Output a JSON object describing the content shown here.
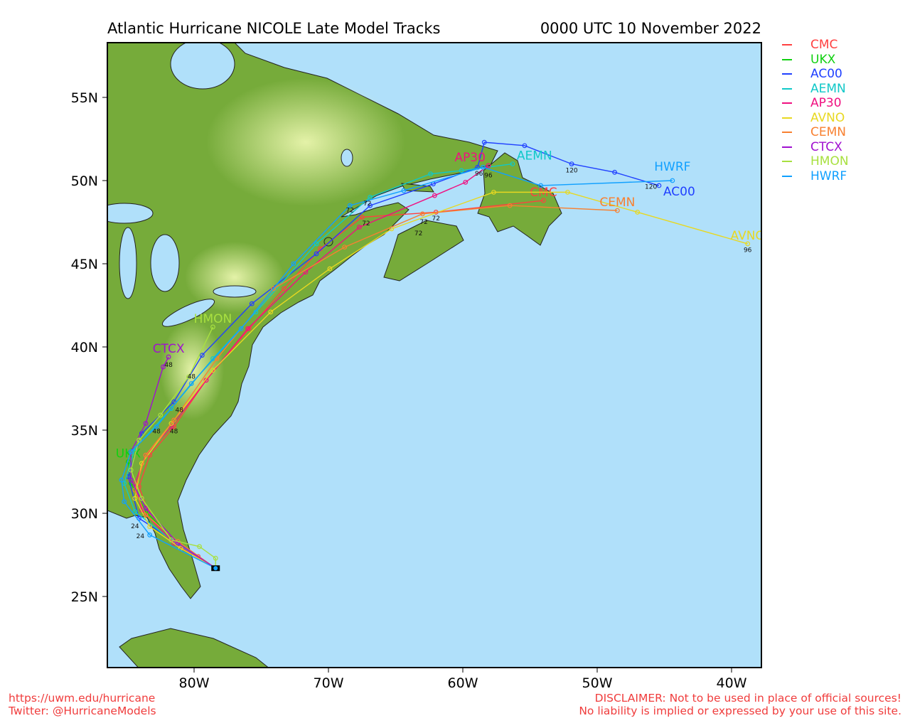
{
  "header": {
    "title": "Atlantic Hurricane NICOLE Late Model Tracks",
    "datetime": "0000 UTC 10 November 2022"
  },
  "colors": {
    "ocean": "#b0e0fa",
    "land": "#76ab3a",
    "land_high": "#d8ec9a",
    "footer": "#f03c3c"
  },
  "chart_data": {
    "type": "map-tracks",
    "title": "Atlantic Hurricane NICOLE Late Model Tracks",
    "lat_ticks": [
      {
        "value": 55,
        "label": "55N"
      },
      {
        "value": 50,
        "label": "50N"
      },
      {
        "value": 45,
        "label": "45N"
      },
      {
        "value": 40,
        "label": "40N"
      },
      {
        "value": 35,
        "label": "35N"
      },
      {
        "value": 30,
        "label": "30N"
      },
      {
        "value": 25,
        "label": "25N"
      }
    ],
    "lon_ticks": [
      {
        "value": -80,
        "label": "80W"
      },
      {
        "value": -70,
        "label": "70W"
      },
      {
        "value": -60,
        "label": "60W"
      },
      {
        "value": -50,
        "label": "50W"
      },
      {
        "value": -40,
        "label": "40W"
      }
    ],
    "lon_range": [
      -86.4,
      -37.8
    ],
    "lat_range": [
      20.7,
      58.3
    ],
    "start": [
      -78.4,
      26.7
    ],
    "tracks": [
      {
        "name": "CMC",
        "color": "#ff4040",
        "points": [
          [
            -78.4,
            26.7
          ],
          [
            -79.7,
            27.4
          ],
          [
            -81.3,
            28.2
          ],
          [
            -83.4,
            30.1
          ],
          [
            -84.1,
            31.6
          ],
          [
            -83.3,
            33.5
          ],
          [
            -81.5,
            35.2
          ],
          [
            -79.1,
            38.0
          ],
          [
            -75.9,
            41.1
          ],
          [
            -73.3,
            43.5
          ],
          [
            -70.6,
            45.9
          ],
          [
            -67.5,
            47.8
          ],
          [
            -62.0,
            48.1
          ],
          [
            -54.0,
            48.8
          ]
        ]
      },
      {
        "name": "UKX",
        "color": "#10d010",
        "points": [
          [
            -78.4,
            26.7
          ],
          [
            -81.2,
            28.2
          ],
          [
            -83.6,
            30.1
          ],
          [
            -84.7,
            31.8
          ],
          [
            -84.9,
            33.1
          ]
        ]
      },
      {
        "name": "AC00",
        "color": "#2040ff",
        "points": [
          [
            -78.4,
            26.7
          ],
          [
            -81.2,
            28.2
          ],
          [
            -84.1,
            29.7
          ],
          [
            -84.9,
            32.2
          ],
          [
            -83.9,
            34.8
          ],
          [
            -81.5,
            36.7
          ],
          [
            -79.4,
            39.5
          ],
          [
            -75.7,
            42.6
          ],
          [
            -70.9,
            45.6
          ],
          [
            -66.9,
            48.5
          ],
          [
            -62.2,
            49.8
          ],
          [
            -58.9,
            50.8
          ],
          [
            -58.4,
            52.3
          ],
          [
            -55.4,
            52.1
          ],
          [
            -51.9,
            51.0
          ],
          [
            -48.7,
            50.5
          ],
          [
            -45.4,
            49.7
          ]
        ]
      },
      {
        "name": "AEMN",
        "color": "#10c8c8",
        "points": [
          [
            -78.4,
            26.7
          ],
          [
            -81.7,
            28.4
          ],
          [
            -84.4,
            30.1
          ],
          [
            -85.2,
            31.8
          ],
          [
            -84.4,
            33.9
          ],
          [
            -81.7,
            36.3
          ],
          [
            -78.6,
            39.3
          ],
          [
            -75.4,
            42.1
          ],
          [
            -70.9,
            46.2
          ],
          [
            -66.9,
            49.0
          ],
          [
            -62.4,
            50.4
          ],
          [
            -60.1,
            50.6
          ],
          [
            -56.3,
            51.0
          ]
        ]
      },
      {
        "name": "AP30",
        "color": "#f01080",
        "points": [
          [
            -78.4,
            26.7
          ],
          [
            -81.5,
            28.2
          ],
          [
            -83.9,
            30.2
          ],
          [
            -84.4,
            31.8
          ],
          [
            -83.6,
            33.5
          ],
          [
            -81.7,
            35.2
          ],
          [
            -79.1,
            38.0
          ],
          [
            -76.0,
            41.1
          ],
          [
            -71.7,
            44.5
          ],
          [
            -67.7,
            47.2
          ],
          [
            -62.1,
            49.1
          ],
          [
            -59.8,
            49.9
          ],
          [
            -58.1,
            50.9
          ]
        ]
      },
      {
        "name": "AVNO",
        "color": "#e8d820",
        "points": [
          [
            -78.4,
            26.7
          ],
          [
            -81.0,
            27.9
          ],
          [
            -83.3,
            29.2
          ],
          [
            -84.4,
            30.9
          ],
          [
            -83.9,
            33.0
          ],
          [
            -81.7,
            35.4
          ],
          [
            -78.6,
            38.6
          ],
          [
            -74.3,
            42.1
          ],
          [
            -69.9,
            44.7
          ],
          [
            -65.3,
            47.1
          ],
          [
            -57.7,
            49.3
          ],
          [
            -52.2,
            49.3
          ],
          [
            -47.0,
            48.1
          ],
          [
            -38.8,
            46.2
          ]
        ]
      },
      {
        "name": "CEMN",
        "color": "#f88030",
        "points": [
          [
            -78.4,
            26.7
          ],
          [
            -81.2,
            28.3
          ],
          [
            -83.6,
            29.9
          ],
          [
            -84.4,
            31.4
          ],
          [
            -83.6,
            33.5
          ],
          [
            -81.5,
            35.6
          ],
          [
            -78.3,
            39.3
          ],
          [
            -74.1,
            43.5
          ],
          [
            -68.8,
            46.0
          ],
          [
            -63.0,
            48.0
          ],
          [
            -56.5,
            48.5
          ],
          [
            -48.5,
            48.2
          ]
        ]
      },
      {
        "name": "CTCX",
        "color": "#a010d0",
        "points": [
          [
            -78.4,
            26.7
          ],
          [
            -81.2,
            28.2
          ],
          [
            -83.6,
            30.3
          ],
          [
            -84.7,
            32.0
          ],
          [
            -84.7,
            33.7
          ],
          [
            -83.6,
            35.4
          ],
          [
            -82.3,
            38.8
          ],
          [
            -81.9,
            39.4
          ]
        ]
      },
      {
        "name": "HMON",
        "color": "#a8e040",
        "points": [
          [
            -78.4,
            26.7
          ],
          [
            -78.4,
            27.3
          ],
          [
            -79.6,
            28.0
          ],
          [
            -81.7,
            28.4
          ],
          [
            -83.9,
            30.9
          ],
          [
            -84.7,
            32.6
          ],
          [
            -84.1,
            34.4
          ],
          [
            -82.5,
            35.9
          ],
          [
            -80.4,
            38.2
          ],
          [
            -78.6,
            41.2
          ]
        ]
      },
      {
        "name": "HWRF",
        "color": "#10a0ff",
        "points": [
          [
            -78.4,
            26.7
          ],
          [
            -83.3,
            28.7
          ],
          [
            -85.2,
            30.7
          ],
          [
            -85.4,
            32.0
          ],
          [
            -84.7,
            33.7
          ],
          [
            -82.8,
            35.2
          ],
          [
            -80.2,
            37.8
          ],
          [
            -76.5,
            41.1
          ],
          [
            -72.6,
            45.0
          ],
          [
            -68.4,
            48.5
          ],
          [
            -64.4,
            49.4
          ],
          [
            -58.5,
            50.8
          ],
          [
            -54.2,
            49.7
          ],
          [
            -44.4,
            50.0
          ]
        ]
      }
    ],
    "hour_labels": [
      {
        "text": "120",
        "lon": -51.9,
        "lat": 50.5
      },
      {
        "text": "120",
        "lon": -46.0,
        "lat": 49.5
      },
      {
        "text": "96",
        "lon": -38.8,
        "lat": 45.7
      },
      {
        "text": "96",
        "lon": -58.1,
        "lat": 50.2
      },
      {
        "text": "96",
        "lon": -58.8,
        "lat": 50.3
      },
      {
        "text": "72",
        "lon": -68.4,
        "lat": 48.1
      },
      {
        "text": "72",
        "lon": -67.1,
        "lat": 48.5
      },
      {
        "text": "72",
        "lon": -67.2,
        "lat": 47.3
      },
      {
        "text": "72",
        "lon": -62.9,
        "lat": 47.4
      },
      {
        "text": "72",
        "lon": -63.3,
        "lat": 47.0
      },
      {
        "text": "72",
        "lon": -62.0,
        "lat": 47.6
      },
      {
        "text": "48",
        "lon": -81.5,
        "lat": 34.8
      },
      {
        "text": "48",
        "lon": -81.1,
        "lat": 36.1
      },
      {
        "text": "48",
        "lon": -82.8,
        "lat": 34.8
      },
      {
        "text": "48",
        "lon": -80.2,
        "lat": 38.1
      },
      {
        "text": "48",
        "lon": -81.9,
        "lat": 38.8
      },
      {
        "text": "24",
        "lon": -84.4,
        "lat": 29.1
      },
      {
        "text": "24",
        "lon": -84.0,
        "lat": 29.4
      }
    ]
  },
  "legend": [
    {
      "label": "CMC",
      "color": "#ff4040"
    },
    {
      "label": "UKX",
      "color": "#10d010"
    },
    {
      "label": "AC00",
      "color": "#2040ff"
    },
    {
      "label": "AEMN",
      "color": "#10c8c8"
    },
    {
      "label": "AP30",
      "color": "#f01080"
    },
    {
      "label": "AVNO",
      "color": "#e8d820"
    },
    {
      "label": "CEMN",
      "color": "#f88030"
    },
    {
      "label": "CTCX",
      "color": "#a010d0"
    },
    {
      "label": "HMON",
      "color": "#a8e040"
    },
    {
      "label": "HWRF",
      "color": "#10a0ff"
    }
  ],
  "footer": {
    "url": "https://uwm.edu/hurricane",
    "twitter": "Twitter: @HurricaneModels",
    "disclaimer1": "DISCLAIMER: Not to be used in place of official sources!",
    "disclaimer2": "No liability is implied or expressed by your use of this site."
  }
}
